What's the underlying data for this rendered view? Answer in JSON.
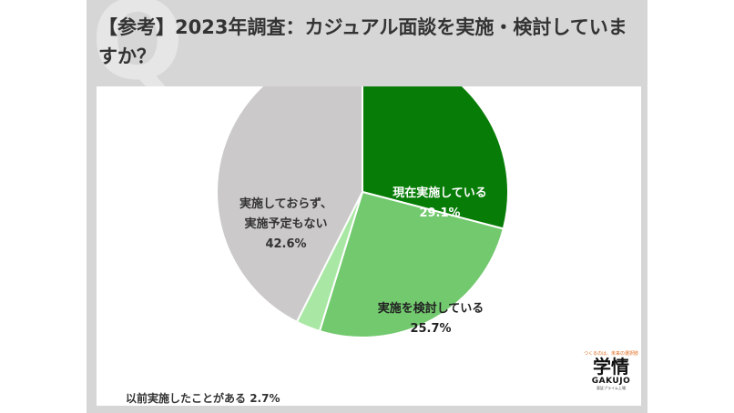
{
  "title": "【参考】2023年調査：カジュアル面談を実施・検討していますか？",
  "logo": {
    "tagline": "つくるのは、未来の選択肢",
    "main": "学情",
    "sub": "GAKUJO",
    "caption": "東証プライム上場"
  },
  "colors": {
    "implemented": "#077d07",
    "considering": "#72c96e",
    "previously": "#a8e8a4",
    "none": "#cbc9c9"
  },
  "chart_data": {
    "type": "pie",
    "title": "",
    "slices": [
      {
        "label_lines": [
          "現在実施している"
        ],
        "value": 29.1,
        "value_label": "29.1%",
        "color": "#077d07",
        "text_color": "#ffffff"
      },
      {
        "label_lines": [
          "実施を検討している"
        ],
        "value": 25.7,
        "value_label": "25.7%",
        "color": "#72c96e",
        "text_color": "#222222"
      },
      {
        "label_lines": [
          "以前実施したことがある"
        ],
        "value": 2.7,
        "value_label": "2.7%",
        "color": "#a8e8a4",
        "text_color": "#333333"
      },
      {
        "label_lines": [
          "実施しておらず、",
          "実施予定もない"
        ],
        "value": 42.6,
        "value_label": "42.6%",
        "color": "#cbc9c9",
        "text_color": "#333333"
      }
    ],
    "start_angle_deg": 0,
    "direction": "clockwise",
    "legend": "none"
  }
}
